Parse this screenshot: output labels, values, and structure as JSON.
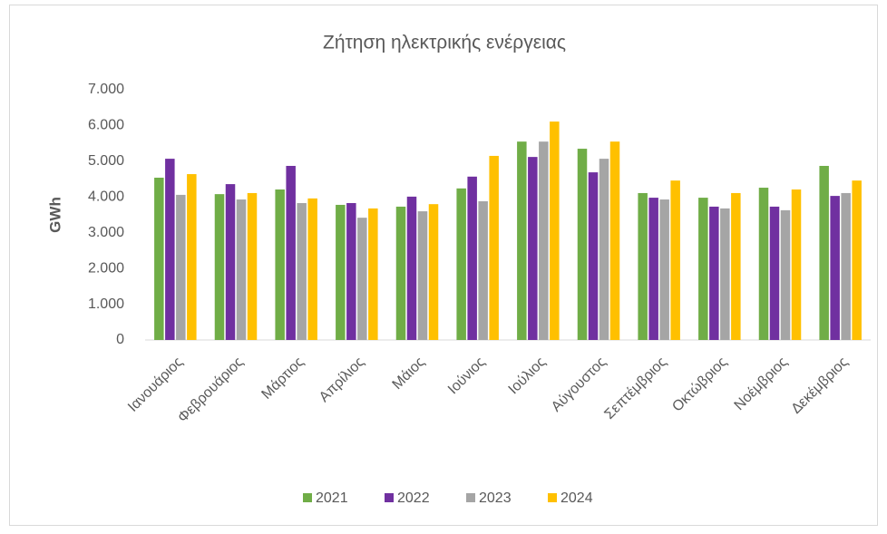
{
  "chart_data": {
    "type": "bar",
    "title": "Ζήτηση ηλεκτρικής ενέργειας",
    "y_label": "GWh",
    "categories": [
      "Ιανουάριος",
      "Φεβρουάριος",
      "Μάρτιος",
      "Απρίλιος",
      "Μάιος",
      "Ιούνιος",
      "Ιούλιος",
      "Αύγουστος",
      "Σεπτέμβριος",
      "Οκτώβριος",
      "Νοέμβριος",
      "Δεκέμβριος"
    ],
    "series": [
      {
        "name": "2021",
        "color": "#70ad47",
        "values": [
          4540,
          4080,
          4210,
          3780,
          3730,
          4240,
          5550,
          5350,
          4110,
          3980,
          4260,
          4870
        ]
      },
      {
        "name": "2022",
        "color": "#7030a0",
        "values": [
          5070,
          4360,
          4870,
          3830,
          4010,
          4570,
          5120,
          4690,
          3980,
          3730,
          3730,
          4030
        ]
      },
      {
        "name": "2023",
        "color": "#a5a5a5",
        "values": [
          4060,
          3930,
          3830,
          3420,
          3600,
          3880,
          5550,
          5070,
          3930,
          3680,
          3630,
          4110
        ]
      },
      {
        "name": "2024",
        "color": "#ffc000",
        "values": [
          4640,
          4110,
          3960,
          3680,
          3800,
          5150,
          6110,
          5550,
          4460,
          4110,
          4210,
          4460
        ]
      }
    ],
    "ylim": [
      0,
      7000
    ],
    "yticks": [
      0,
      {
        "value": 1000,
        "label": "1.000"
      },
      {
        "value": 2000,
        "label": "2.000"
      },
      {
        "value": 3000,
        "label": "3.000"
      },
      {
        "value": 4000,
        "label": "4.000"
      },
      {
        "value": 5000,
        "label": "5.000"
      },
      {
        "value": 6000,
        "label": "6.000"
      },
      {
        "value": 7000,
        "label": "7.000"
      }
    ],
    "grid": false,
    "legend": "bottom"
  }
}
